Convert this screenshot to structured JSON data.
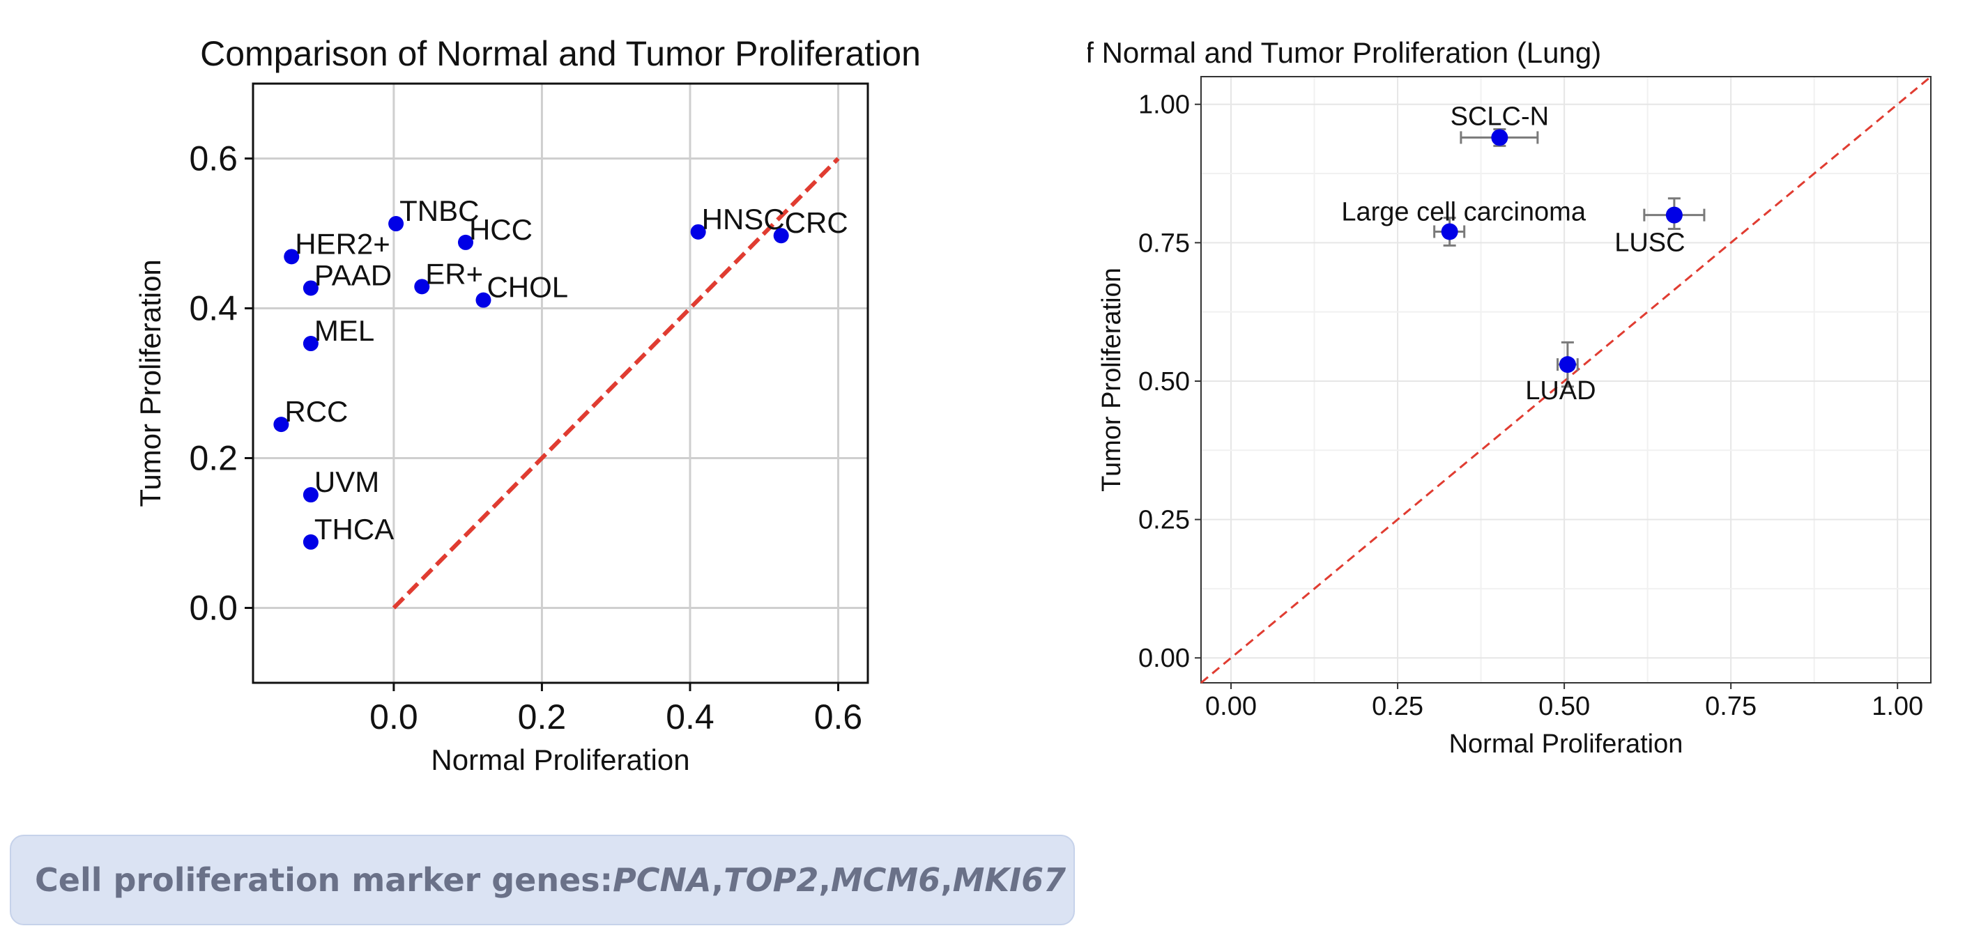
{
  "chart_data": [
    {
      "type": "scatter",
      "title": "Comparison of Normal and Tumor Proliferation",
      "xlabel": "Normal Proliferation",
      "ylabel": "Tumor Proliferation",
      "xlim": [
        -0.19,
        0.64
      ],
      "ylim": [
        -0.1,
        0.7
      ],
      "xticks": [
        0.0,
        0.2,
        0.4,
        0.6
      ],
      "yticks": [
        0.0,
        0.2,
        0.4,
        0.6
      ],
      "xtick_labels": [
        "0.0",
        "0.2",
        "0.4",
        "0.6"
      ],
      "ytick_labels": [
        "0.0",
        "0.2",
        "0.4",
        "0.6"
      ],
      "grid": true,
      "diagonal": {
        "from": [
          0.0,
          0.0
        ],
        "to": [
          0.6,
          0.6
        ],
        "color": "#e03c31",
        "style": "dashed"
      },
      "marker_color": "#0000e6",
      "points": [
        {
          "label": "TNBC",
          "x": 0.003,
          "y": 0.513
        },
        {
          "label": "HCC",
          "x": 0.097,
          "y": 0.488
        },
        {
          "label": "HER2+",
          "x": -0.138,
          "y": 0.469
        },
        {
          "label": "PAAD",
          "x": -0.112,
          "y": 0.427
        },
        {
          "label": "ER+",
          "x": 0.038,
          "y": 0.429
        },
        {
          "label": "CHOL",
          "x": 0.121,
          "y": 0.411
        },
        {
          "label": "MEL",
          "x": -0.112,
          "y": 0.353
        },
        {
          "label": "RCC",
          "x": -0.152,
          "y": 0.245
        },
        {
          "label": "UVM",
          "x": -0.112,
          "y": 0.151
        },
        {
          "label": "THCA",
          "x": -0.112,
          "y": 0.088
        },
        {
          "label": "HNSC",
          "x": 0.411,
          "y": 0.502
        },
        {
          "label": "CRC",
          "x": 0.523,
          "y": 0.497
        }
      ]
    },
    {
      "type": "scatter",
      "title": "Comparison of Normal and Tumor Proliferation (Lung)",
      "xlabel": "Normal Proliferation",
      "ylabel": "Tumor Proliferation",
      "xlim": [
        -0.045,
        1.05
      ],
      "ylim": [
        -0.045,
        1.05
      ],
      "xticks": [
        0.0,
        0.25,
        0.5,
        0.75,
        1.0
      ],
      "yticks": [
        0.0,
        0.25,
        0.5,
        0.75,
        1.0
      ],
      "xtick_labels": [
        "0.00",
        "0.25",
        "0.50",
        "0.75",
        "1.00"
      ],
      "ytick_labels": [
        "0.00",
        "0.25",
        "0.50",
        "0.75",
        "1.00"
      ],
      "grid": true,
      "diagonal": {
        "color": "#e03c31",
        "style": "dashed"
      },
      "marker_color": "#0000e6",
      "points": [
        {
          "label": "SCLC-N",
          "x": 0.403,
          "y": 0.94,
          "xerr": [
            0.345,
            0.46
          ],
          "yerr": [
            0.925,
            0.955
          ]
        },
        {
          "label": "Large cell carcinoma",
          "x": 0.328,
          "y": 0.77,
          "xerr": [
            0.305,
            0.35
          ],
          "yerr": [
            0.745,
            0.795
          ]
        },
        {
          "label": "LUSC",
          "x": 0.665,
          "y": 0.8,
          "xerr": [
            0.62,
            0.71
          ],
          "yerr": [
            0.775,
            0.83
          ]
        },
        {
          "label": "LUAD",
          "x": 0.505,
          "y": 0.53,
          "xerr": [
            0.49,
            0.52
          ],
          "yerr": [
            0.49,
            0.57
          ]
        }
      ]
    }
  ],
  "caption": {
    "prefix": "Cell proliferation marker genes: ",
    "genes": [
      "PCNA",
      "TOP2",
      "MCM6",
      "MKI67"
    ],
    "separator": ", "
  }
}
